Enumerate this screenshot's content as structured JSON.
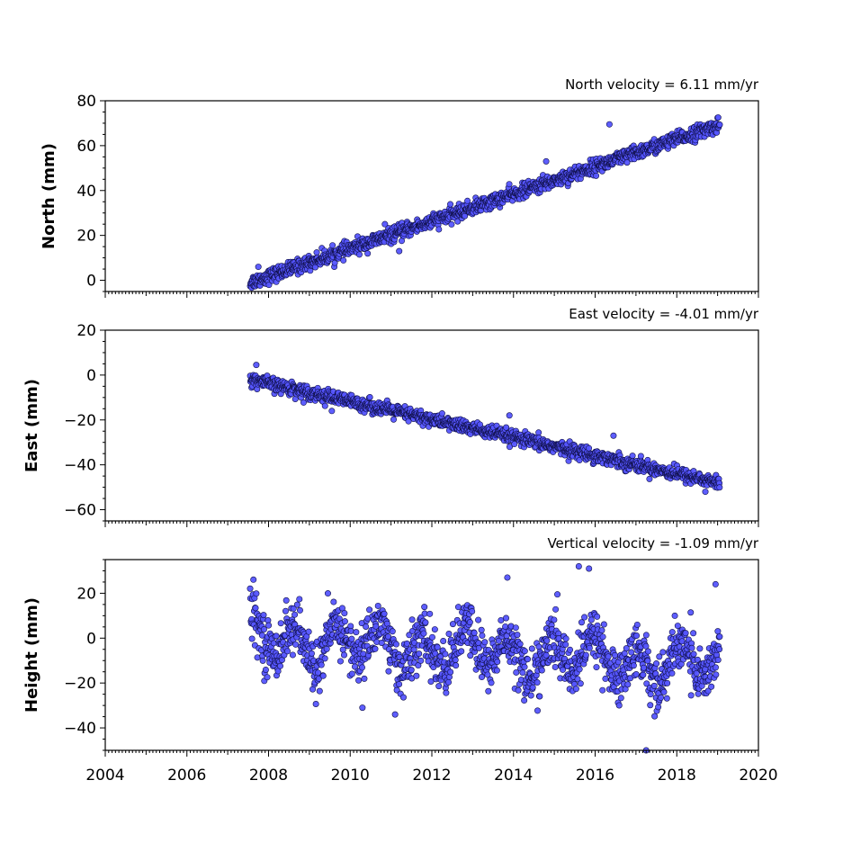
{
  "chart_data": [
    {
      "type": "scatter",
      "title": "North velocity = 6.11 mm/yr",
      "ylabel": "North (mm)",
      "xlim": [
        2004,
        2020
      ],
      "ylim": [
        -5,
        80
      ],
      "yticks": [
        0,
        20,
        40,
        60,
        80
      ],
      "grid": false,
      "data_span": [
        2007.55,
        2019.05
      ],
      "trend_start": -1,
      "velocity_mm_per_yr": 6.11,
      "scatter_mm": 1.6,
      "outliers": [
        {
          "x": 2016.35,
          "y": 69.5
        },
        {
          "x": 2014.8,
          "y": 53
        },
        {
          "x": 2010.85,
          "y": 25
        },
        {
          "x": 2011.2,
          "y": 13
        },
        {
          "x": 2007.75,
          "y": 6
        }
      ]
    },
    {
      "type": "scatter",
      "title": "East velocity = -4.01 mm/yr",
      "ylabel": "East (mm)",
      "xlim": [
        2004,
        2020
      ],
      "ylim": [
        -65,
        20
      ],
      "yticks": [
        -60,
        -40,
        -20,
        0,
        20
      ],
      "grid": false,
      "data_span": [
        2007.55,
        2019.05
      ],
      "trend_start": -2,
      "velocity_mm_per_yr": -4.01,
      "scatter_mm": 1.5,
      "outliers": [
        {
          "x": 2007.7,
          "y": 4.5
        },
        {
          "x": 2016.45,
          "y": -27
        },
        {
          "x": 2013.9,
          "y": -18
        },
        {
          "x": 2009.55,
          "y": -16
        },
        {
          "x": 2018.7,
          "y": -52
        }
      ]
    },
    {
      "type": "scatter",
      "title": "Vertical velocity = -1.09 mm/yr",
      "ylabel": "Height (mm)",
      "xlim": [
        2004,
        2020
      ],
      "ylim": [
        -50,
        35
      ],
      "yticks": [
        -40,
        -20,
        0,
        20
      ],
      "grid": false,
      "data_span": [
        2007.55,
        2019.05
      ],
      "trend_start": 0,
      "velocity_mm_per_yr": -1.09,
      "seasonal_amplitude_mm": 8,
      "scatter_mm": 6,
      "outliers": [
        {
          "x": 2015.6,
          "y": 32
        },
        {
          "x": 2015.85,
          "y": 31
        },
        {
          "x": 2013.85,
          "y": 27
        },
        {
          "x": 2018.95,
          "y": 24
        },
        {
          "x": 2017.25,
          "y": -50
        },
        {
          "x": 2010.3,
          "y": -31
        },
        {
          "x": 2011.1,
          "y": -34
        }
      ]
    }
  ],
  "xaxis": {
    "tick_labels": [
      "2004",
      "2006",
      "2008",
      "2010",
      "2012",
      "2014",
      "2016",
      "2018",
      "2020"
    ],
    "major_tick_values": [
      2004,
      2006,
      2008,
      2010,
      2012,
      2014,
      2016,
      2018,
      2020
    ]
  },
  "colors": {
    "marker_fill": "#5555ff",
    "marker_edge": "#10104a",
    "axes": "#000000",
    "background": "#ffffff"
  }
}
